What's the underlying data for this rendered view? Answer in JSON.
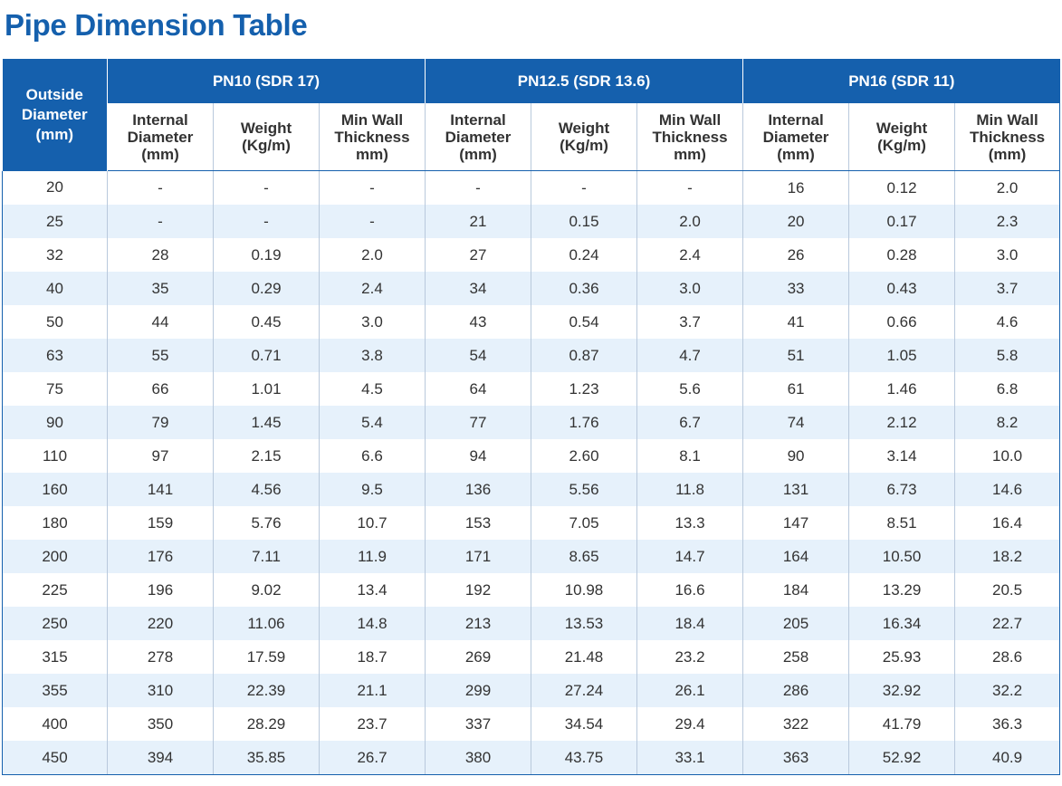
{
  "title": "Pipe Dimension Table",
  "header": {
    "outside_diameter": [
      "Outside",
      "Diameter",
      "(mm)"
    ],
    "groups": [
      "PN10 (SDR 17)",
      "PN12.5 (SDR 13.6)",
      "PN16 (SDR 11)"
    ],
    "subcolumns": [
      [
        [
          "Internal",
          "Diameter",
          "(mm)"
        ],
        [
          "Weight",
          "(Kg/m)"
        ],
        [
          "Min Wall",
          "Thickness",
          "mm)"
        ]
      ],
      [
        [
          "Internal",
          "Diameter",
          "(mm)"
        ],
        [
          "Weight",
          "(Kg/m)"
        ],
        [
          "Min Wall",
          "Thickness",
          "mm)"
        ]
      ],
      [
        [
          "Internal",
          "Diameter",
          "(mm)"
        ],
        [
          "Weight",
          "(Kg/m)"
        ],
        [
          "Min Wall",
          "Thickness",
          "(mm)"
        ]
      ]
    ]
  },
  "rows": [
    [
      "20",
      "-",
      "-",
      "-",
      "-",
      "-",
      "-",
      "16",
      "0.12",
      "2.0"
    ],
    [
      "25",
      "-",
      "-",
      "-",
      "21",
      "0.15",
      "2.0",
      "20",
      "0.17",
      "2.3"
    ],
    [
      "32",
      "28",
      "0.19",
      "2.0",
      "27",
      "0.24",
      "2.4",
      "26",
      "0.28",
      "3.0"
    ],
    [
      "40",
      "35",
      "0.29",
      "2.4",
      "34",
      "0.36",
      "3.0",
      "33",
      "0.43",
      "3.7"
    ],
    [
      "50",
      "44",
      "0.45",
      "3.0",
      "43",
      "0.54",
      "3.7",
      "41",
      "0.66",
      "4.6"
    ],
    [
      "63",
      "55",
      "0.71",
      "3.8",
      "54",
      "0.87",
      "4.7",
      "51",
      "1.05",
      "5.8"
    ],
    [
      "75",
      "66",
      "1.01",
      "4.5",
      "64",
      "1.23",
      "5.6",
      "61",
      "1.46",
      "6.8"
    ],
    [
      "90",
      "79",
      "1.45",
      "5.4",
      "77",
      "1.76",
      "6.7",
      "74",
      "2.12",
      "8.2"
    ],
    [
      "110",
      "97",
      "2.15",
      "6.6",
      "94",
      "2.60",
      "8.1",
      "90",
      "3.14",
      "10.0"
    ],
    [
      "160",
      "141",
      "4.56",
      "9.5",
      "136",
      "5.56",
      "11.8",
      "131",
      "6.73",
      "14.6"
    ],
    [
      "180",
      "159",
      "5.76",
      "10.7",
      "153",
      "7.05",
      "13.3",
      "147",
      "8.51",
      "16.4"
    ],
    [
      "200",
      "176",
      "7.11",
      "11.9",
      "171",
      "8.65",
      "14.7",
      "164",
      "10.50",
      "18.2"
    ],
    [
      "225",
      "196",
      "9.02",
      "13.4",
      "192",
      "10.98",
      "16.6",
      "184",
      "13.29",
      "20.5"
    ],
    [
      "250",
      "220",
      "11.06",
      "14.8",
      "213",
      "13.53",
      "18.4",
      "205",
      "16.34",
      "22.7"
    ],
    [
      "315",
      "278",
      "17.59",
      "18.7",
      "269",
      "21.48",
      "23.2",
      "258",
      "25.93",
      "28.6"
    ],
    [
      "355",
      "310",
      "22.39",
      "21.1",
      "299",
      "27.24",
      "26.1",
      "286",
      "32.92",
      "32.2"
    ],
    [
      "400",
      "350",
      "28.29",
      "23.7",
      "337",
      "34.54",
      "29.4",
      "322",
      "41.79",
      "36.3"
    ],
    [
      "450",
      "394",
      "35.85",
      "26.7",
      "380",
      "43.75",
      "33.1",
      "363",
      "52.92",
      "40.9"
    ]
  ],
  "colors": {
    "header_blue": "#1560ad",
    "row_alt": "#e6f1fb",
    "grid": "#b9c9dc",
    "text": "#333333"
  }
}
